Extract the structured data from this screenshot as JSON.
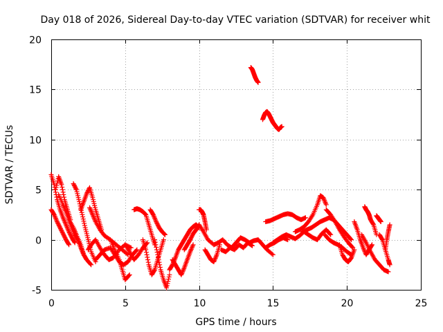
{
  "chart_data": {
    "type": "scatter",
    "title": "Day 018 of 2026, Sidereal Day-to-day VTEC variation (SDTVAR) for receiver whit",
    "xlabel": "GPS time / hours",
    "ylabel": "SDTVAR / TECUs",
    "xlim": [
      0,
      25
    ],
    "ylim": [
      -5,
      20
    ],
    "xticks": [
      0,
      5,
      10,
      15,
      20,
      25
    ],
    "yticks": [
      -5,
      0,
      5,
      10,
      15,
      20
    ],
    "xtick_labels": [
      "0",
      "5",
      "10",
      "15",
      "20",
      "25"
    ],
    "ytick_labels": [
      "-5",
      "0",
      "5",
      "10",
      "15",
      "20"
    ],
    "grid": true,
    "marker": "+",
    "color": "#ff0000",
    "series": [
      {
        "name": "SDTVAR",
        "segments": [
          {
            "x": [
              0.0,
              0.2,
              0.4,
              0.6,
              0.8,
              1.0,
              1.2,
              1.4,
              1.6
            ],
            "y": [
              6.5,
              5.5,
              4.0,
              3.0,
              2.2,
              1.5,
              0.8,
              0.2,
              -0.3
            ]
          },
          {
            "x": [
              0.0,
              0.2,
              0.4,
              0.6,
              0.8,
              1.0,
              1.2
            ],
            "y": [
              3.0,
              2.5,
              1.8,
              1.2,
              0.6,
              0.0,
              -0.5
            ]
          },
          {
            "x": [
              0.3,
              0.5,
              0.7,
              0.9,
              1.1,
              1.3
            ],
            "y": [
              5.0,
              6.3,
              5.5,
              4.0,
              3.0,
              2.0
            ]
          },
          {
            "x": [
              0.5,
              0.8,
              1.0,
              1.2,
              1.5,
              1.7,
              2.0,
              2.2
            ],
            "y": [
              4.5,
              3.5,
              2.8,
              2.0,
              1.2,
              0.5,
              -0.5,
              -1.5
            ]
          },
          {
            "x": [
              1.5,
              1.7,
              1.9,
              2.1,
              2.3,
              2.5,
              2.7,
              3.0
            ],
            "y": [
              5.6,
              5.0,
              3.8,
              2.5,
              1.2,
              0.0,
              -1.2,
              -2.2
            ]
          },
          {
            "x": [
              1.2,
              1.4,
              1.6,
              1.8,
              2.0,
              2.2,
              2.4,
              2.7
            ],
            "y": [
              2.0,
              1.2,
              0.5,
              0.0,
              -0.8,
              -1.5,
              -2.0,
              -2.5
            ]
          },
          {
            "x": [
              2.0,
              2.2,
              2.4,
              2.6,
              2.8,
              3.0,
              3.2,
              3.4
            ],
            "y": [
              3.0,
              3.8,
              4.6,
              5.2,
              4.2,
              3.0,
              2.0,
              1.0
            ]
          },
          {
            "x": [
              2.6,
              2.8,
              3.0,
              3.3,
              3.6,
              4.0,
              4.4,
              4.8,
              5.2
            ],
            "y": [
              3.2,
              2.5,
              1.8,
              1.0,
              0.4,
              0.0,
              -0.5,
              -1.0,
              -1.5
            ]
          },
          {
            "x": [
              2.5,
              2.7,
              3.0,
              3.3,
              3.6,
              3.9,
              4.2,
              4.6,
              5.0,
              5.4
            ],
            "y": [
              -1.0,
              -0.5,
              0.0,
              -0.8,
              -1.5,
              -2.0,
              -1.8,
              -1.0,
              -0.5,
              -0.8
            ]
          },
          {
            "x": [
              3.0,
              3.3,
              3.6,
              4.0,
              4.3,
              4.6,
              4.9,
              5.2,
              5.5,
              5.8
            ],
            "y": [
              -2.0,
              -1.5,
              -1.0,
              -0.8,
              -1.5,
              -2.2,
              -2.5,
              -2.2,
              -1.5,
              -1.0
            ]
          },
          {
            "x": [
              4.0,
              4.3,
              4.6,
              4.8,
              5.0,
              5.3
            ],
            "y": [
              0.0,
              -1.0,
              -2.0,
              -3.0,
              -4.0,
              -3.5
            ]
          },
          {
            "x": [
              5.0,
              5.3,
              5.6,
              5.9,
              6.2,
              6.5
            ],
            "y": [
              -0.5,
              -1.2,
              -2.0,
              -1.5,
              -0.8,
              -0.3
            ]
          },
          {
            "x": [
              5.6,
              5.8,
              6.0,
              6.2,
              6.4,
              6.6,
              6.8,
              7.0
            ],
            "y": [
              3.0,
              3.1,
              3.0,
              2.8,
              2.5,
              1.5,
              0.5,
              -0.5
            ]
          },
          {
            "x": [
              6.2,
              6.4,
              6.6,
              6.8,
              7.0,
              7.2,
              7.4,
              7.6
            ],
            "y": [
              0.0,
              -1.0,
              -2.5,
              -3.5,
              -3.0,
              -2.0,
              -1.0,
              0.0
            ]
          },
          {
            "x": [
              6.7,
              6.9,
              7.1,
              7.3,
              7.5,
              7.7
            ],
            "y": [
              3.0,
              2.5,
              1.8,
              1.2,
              0.8,
              0.5
            ]
          },
          {
            "x": [
              7.0,
              7.2,
              7.4,
              7.6,
              7.8,
              8.0
            ],
            "y": [
              0.0,
              -1.5,
              -3.0,
              -4.0,
              -4.8,
              -3.5
            ]
          },
          {
            "x": [
              8.0,
              8.2,
              8.4,
              8.6,
              8.8,
              9.0,
              9.2,
              9.4,
              9.6,
              9.8,
              10.0
            ],
            "y": [
              -3.0,
              -2.5,
              -1.8,
              -1.0,
              -0.5,
              0.0,
              0.5,
              1.0,
              1.3,
              1.5,
              1.2
            ]
          },
          {
            "x": [
              8.2,
              8.4,
              8.6,
              8.8,
              9.0,
              9.2,
              9.4,
              9.6
            ],
            "y": [
              -2.0,
              -2.5,
              -3.0,
              -3.5,
              -2.8,
              -2.0,
              -1.2,
              -0.5
            ]
          },
          {
            "x": [
              9.0,
              9.2,
              9.4,
              9.6,
              9.8,
              10.0,
              10.3,
              10.6,
              11.0
            ],
            "y": [
              -1.0,
              -0.5,
              0.0,
              0.6,
              1.0,
              1.5,
              0.8,
              0.0,
              -0.5
            ]
          },
          {
            "x": [
              10.0,
              10.1,
              10.2,
              10.3,
              10.4,
              10.5
            ],
            "y": [
              3.0,
              3.0,
              2.8,
              2.5,
              1.8,
              1.0
            ]
          },
          {
            "x": [
              10.4,
              10.6,
              10.8,
              11.0,
              11.2,
              11.4
            ],
            "y": [
              -1.0,
              -1.5,
              -2.0,
              -2.2,
              -1.5,
              -0.5
            ]
          },
          {
            "x": [
              11.0,
              11.3,
              11.6,
              11.9,
              12.2,
              12.5,
              12.8,
              13.1,
              13.4,
              13.7,
              14.0,
              14.3,
              14.6,
              15.0
            ],
            "y": [
              -0.5,
              -0.3,
              0.0,
              -0.5,
              -0.8,
              -0.3,
              0.2,
              0.0,
              -0.3,
              -0.1,
              0.0,
              -0.5,
              -1.0,
              -1.5
            ]
          },
          {
            "x": [
              11.5,
              11.8,
              12.1,
              12.4,
              12.7,
              13.0,
              13.3,
              13.6
            ],
            "y": [
              -1.0,
              -1.2,
              -0.8,
              -1.0,
              -0.5,
              -0.8,
              -0.3,
              -0.6
            ]
          },
          {
            "x": [
              13.5,
              13.6,
              13.7,
              13.8,
              13.9,
              14.0
            ],
            "y": [
              17.2,
              17.0,
              16.6,
              16.2,
              15.9,
              15.7
            ]
          },
          {
            "x": [
              14.3,
              14.4,
              14.5,
              14.6,
              14.7,
              14.8,
              14.9,
              15.0,
              15.1,
              15.2,
              15.3,
              15.4,
              15.5,
              15.6
            ],
            "y": [
              12.0,
              12.4,
              12.7,
              12.8,
              12.6,
              12.3,
              12.0,
              11.7,
              11.5,
              11.3,
              11.1,
              11.0,
              11.2,
              11.3
            ]
          },
          {
            "x": [
              14.5,
              14.8,
              15.1,
              15.4,
              15.7,
              16.0,
              16.3,
              16.6,
              16.9,
              17.2
            ],
            "y": [
              1.8,
              1.9,
              2.1,
              2.3,
              2.5,
              2.6,
              2.5,
              2.2,
              2.0,
              2.2
            ]
          },
          {
            "x": [
              15.0,
              15.3,
              15.6,
              15.9,
              16.2,
              16.5,
              16.8,
              17.1,
              17.4,
              17.7,
              18.0,
              18.3,
              18.6,
              18.9
            ],
            "y": [
              -0.3,
              0.0,
              0.3,
              0.5,
              0.3,
              0.1,
              0.4,
              0.8,
              0.5,
              0.2,
              0.0,
              0.6,
              1.0,
              0.5
            ]
          },
          {
            "x": [
              14.5,
              14.8,
              15.1,
              15.4,
              15.7,
              16.0
            ],
            "y": [
              -0.8,
              -0.5,
              -0.3,
              0.0,
              0.2,
              0.0
            ]
          },
          {
            "x": [
              16.5,
              16.8,
              17.1,
              17.4,
              17.7,
              18.0,
              18.2,
              18.4,
              18.6
            ],
            "y": [
              0.8,
              1.0,
              1.3,
              1.8,
              2.5,
              3.5,
              4.4,
              4.2,
              3.5
            ]
          },
          {
            "x": [
              17.0,
              17.3,
              17.6,
              17.9,
              18.2,
              18.5,
              18.8,
              19.1,
              19.4,
              19.7,
              20.0,
              20.3
            ],
            "y": [
              0.8,
              1.0,
              1.2,
              1.5,
              1.8,
              2.0,
              2.2,
              2.0,
              1.5,
              1.0,
              0.5,
              0.0
            ]
          },
          {
            "x": [
              18.6,
              18.9,
              19.2,
              19.5,
              19.8,
              20.1,
              20.4
            ],
            "y": [
              3.0,
              2.5,
              1.8,
              1.0,
              0.3,
              -0.3,
              -0.8
            ]
          },
          {
            "x": [
              18.5,
              18.8,
              19.1,
              19.4,
              19.7,
              20.0,
              20.3
            ],
            "y": [
              0.5,
              0.0,
              -0.3,
              -0.5,
              -0.8,
              -1.2,
              -1.5
            ]
          },
          {
            "x": [
              19.5,
              19.7,
              19.9,
              20.1,
              20.3,
              20.5
            ],
            "y": [
              -0.5,
              -1.5,
              -2.0,
              -2.2,
              -1.8,
              -1.0
            ]
          },
          {
            "x": [
              20.5,
              20.7,
              20.9,
              21.1,
              21.3,
              21.5,
              21.7
            ],
            "y": [
              1.8,
              1.0,
              0.0,
              -0.8,
              -1.5,
              -1.0,
              -0.5
            ]
          },
          {
            "x": [
              21.2,
              21.3,
              21.4,
              21.5,
              21.6,
              21.8,
              22.0
            ],
            "y": [
              3.3,
              3.0,
              2.8,
              2.5,
              2.0,
              1.5,
              0.5
            ]
          },
          {
            "x": [
              21.0,
              21.3,
              21.6,
              21.9,
              22.2,
              22.5,
              22.8
            ],
            "y": [
              0.5,
              -0.3,
              -1.2,
              -2.0,
              -2.5,
              -3.0,
              -3.2
            ]
          },
          {
            "x": [
              22.0,
              22.1,
              22.2,
              22.3
            ],
            "y": [
              2.4,
              2.2,
              2.0,
              1.8
            ]
          },
          {
            "x": [
              22.2,
              22.4,
              22.6,
              22.8,
              22.9
            ],
            "y": [
              0.5,
              0.0,
              -1.0,
              -2.0,
              -2.5
            ]
          },
          {
            "x": [
              22.6,
              22.7,
              22.8,
              22.9
            ],
            "y": [
              -1.0,
              0.0,
              0.8,
              1.5
            ]
          }
        ]
      }
    ]
  }
}
